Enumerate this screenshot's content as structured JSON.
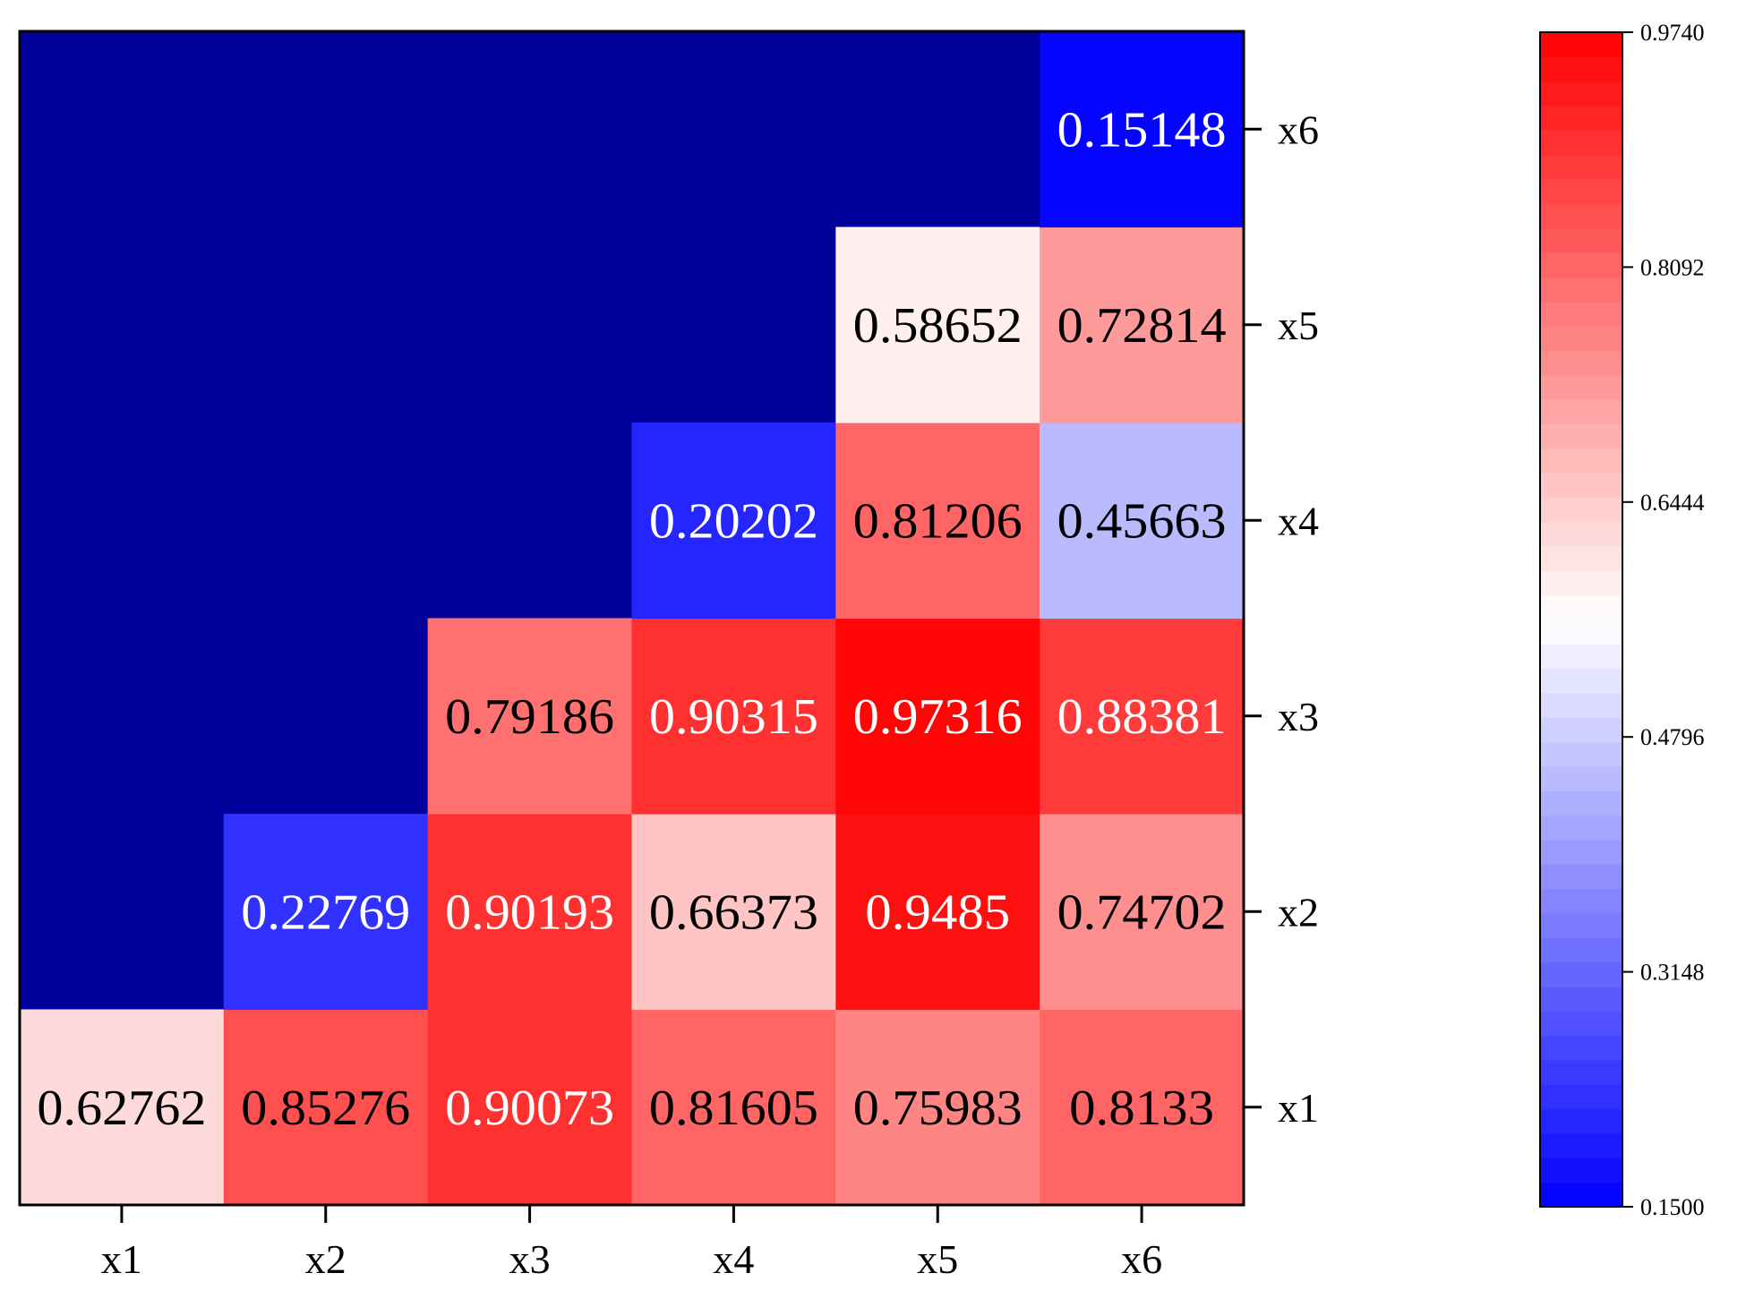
{
  "chart_data": {
    "type": "heatmap",
    "x_labels": [
      "x1",
      "x2",
      "x3",
      "x4",
      "x5",
      "x6"
    ],
    "y_labels": [
      "x1",
      "x2",
      "x3",
      "x4",
      "x5",
      "x6"
    ],
    "cells": [
      {
        "x": "x1",
        "y": "x1",
        "value": 0.62762,
        "label": "0.62762"
      },
      {
        "x": "x2",
        "y": "x1",
        "value": 0.85276,
        "label": "0.85276"
      },
      {
        "x": "x3",
        "y": "x1",
        "value": 0.90073,
        "label": "0.90073"
      },
      {
        "x": "x4",
        "y": "x1",
        "value": 0.81605,
        "label": "0.81605"
      },
      {
        "x": "x5",
        "y": "x1",
        "value": 0.75983,
        "label": "0.75983"
      },
      {
        "x": "x6",
        "y": "x1",
        "value": 0.8133,
        "label": "0.8133"
      },
      {
        "x": "x2",
        "y": "x2",
        "value": 0.22769,
        "label": "0.22769"
      },
      {
        "x": "x3",
        "y": "x2",
        "value": 0.90193,
        "label": "0.90193"
      },
      {
        "x": "x4",
        "y": "x2",
        "value": 0.66373,
        "label": "0.66373"
      },
      {
        "x": "x5",
        "y": "x2",
        "value": 0.9485,
        "label": "0.9485"
      },
      {
        "x": "x6",
        "y": "x2",
        "value": 0.74702,
        "label": "0.74702"
      },
      {
        "x": "x3",
        "y": "x3",
        "value": 0.79186,
        "label": "0.79186"
      },
      {
        "x": "x4",
        "y": "x3",
        "value": 0.90315,
        "label": "0.90315"
      },
      {
        "x": "x5",
        "y": "x3",
        "value": 0.97316,
        "label": "0.97316"
      },
      {
        "x": "x6",
        "y": "x3",
        "value": 0.88381,
        "label": "0.88381"
      },
      {
        "x": "x4",
        "y": "x4",
        "value": 0.20202,
        "label": "0.20202"
      },
      {
        "x": "x5",
        "y": "x4",
        "value": 0.81206,
        "label": "0.81206"
      },
      {
        "x": "x6",
        "y": "x4",
        "value": 0.45663,
        "label": "0.45663"
      },
      {
        "x": "x5",
        "y": "x5",
        "value": 0.58652,
        "label": "0.58652"
      },
      {
        "x": "x6",
        "y": "x5",
        "value": 0.72814,
        "label": "0.72814"
      },
      {
        "x": "x6",
        "y": "x6",
        "value": 0.15148,
        "label": "0.15148"
      }
    ],
    "empty_cell_color": "#00009B",
    "colorbar": {
      "min": 0.15,
      "max": 0.974,
      "ticks": [
        "0.1500",
        "0.3148",
        "0.4796",
        "0.6444",
        "0.8092",
        "0.9740"
      ],
      "color_low": "#0000FF",
      "color_mid": "#FFFFFF",
      "color_high": "#FF0000"
    },
    "legend_position": "right",
    "grid": false
  }
}
